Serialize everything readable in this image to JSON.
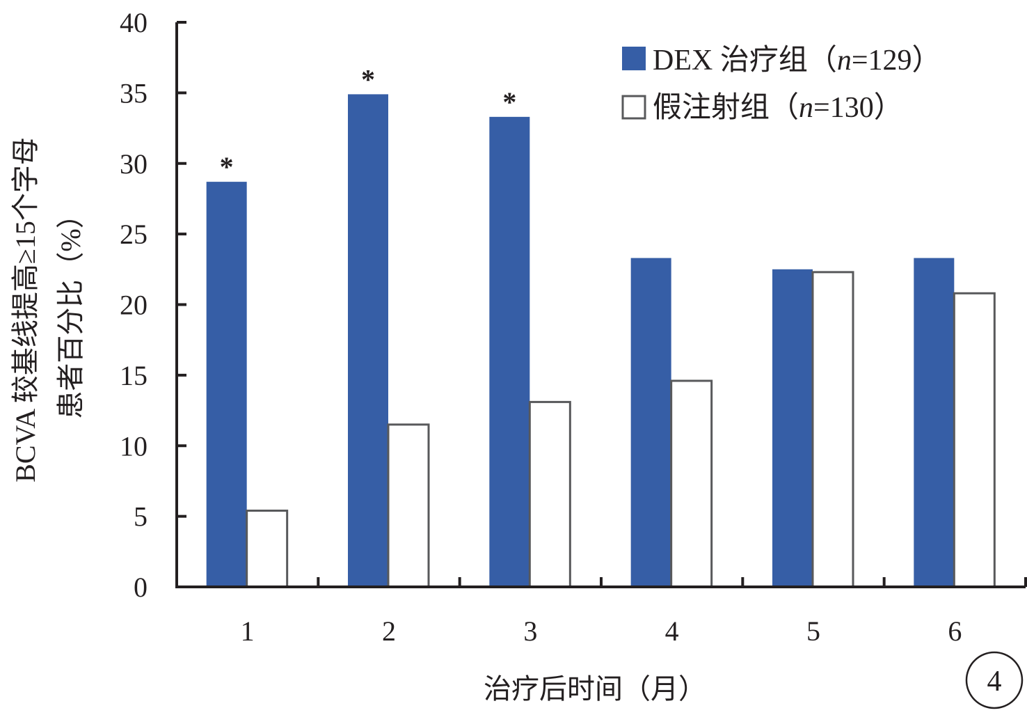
{
  "chart_data": {
    "type": "bar",
    "categories": [
      "1",
      "2",
      "3",
      "4",
      "5",
      "6"
    ],
    "series": [
      {
        "name_prefix": "DEX 治疗组（",
        "name_n": "n",
        "name_suffix": "=129）",
        "values": [
          28.7,
          34.9,
          33.3,
          23.3,
          22.5,
          23.3
        ],
        "color": "#365ea6",
        "significance": [
          "*",
          "*",
          "*",
          "",
          "",
          ""
        ]
      },
      {
        "name_prefix": "假注射组（",
        "name_n": "n",
        "name_suffix": "=130）",
        "values": [
          5.4,
          11.5,
          13.1,
          14.6,
          22.3,
          20.8
        ],
        "color": "#ffffff",
        "stroke": "#58595b",
        "significance": [
          "",
          "",
          "",
          "",
          "",
          ""
        ]
      }
    ],
    "ylabel_line1": "BCVA 较基线提高≥15个字母",
    "ylabel_line2": "患者百分比（%）",
    "xlabel": "治疗后时间（月）",
    "ylim": [
      0,
      40
    ],
    "yticks": [
      0,
      5,
      10,
      15,
      20,
      25,
      30,
      35,
      40
    ],
    "legend_position": "top-right",
    "grid": false,
    "panel_label": "4"
  }
}
